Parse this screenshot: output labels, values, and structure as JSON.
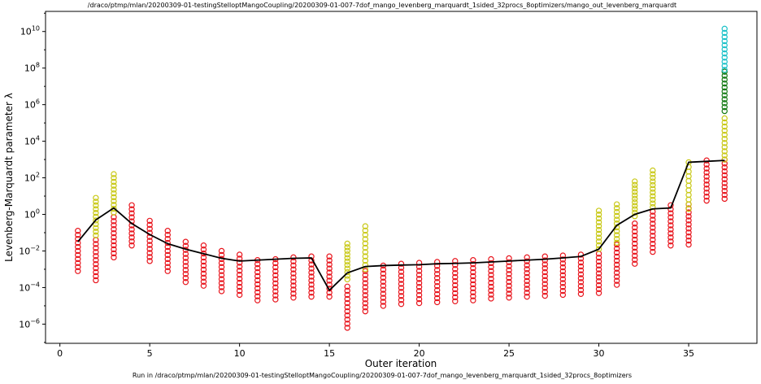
{
  "chart_data": {
    "type": "scatter",
    "title": "/draco/ptmp/mlan/20200309-01-testingStelloptMangoCoupling/20200309-01-007-7dof_mango_levenberg_marquardt_1sided_32procs_8optimizers/mango_out_levenberg_marquardt",
    "footer": "Run in /draco/ptmp/mlan/20200309-01-testingStelloptMangoCoupling/20200309-01-007-7dof_mango_levenberg_marquardt_1sided_32procs_8optimizers",
    "xlabel": "Outer iteration",
    "ylabel": "Levenberg-Marquardt parameter λ",
    "xlim": [
      -0.8,
      38.8
    ],
    "ylim_log10": [
      -7.05,
      11.1
    ],
    "y_scale": "log",
    "x_ticks": [
      0,
      5,
      10,
      15,
      20,
      25,
      30,
      35
    ],
    "x_tick_labels": [
      "0",
      "5",
      "10",
      "15",
      "20",
      "25",
      "30",
      "35"
    ],
    "y_ticks_log10": [
      -6,
      -4,
      -2,
      0,
      2,
      4,
      6,
      8,
      10
    ],
    "y_tick_labels": [
      {
        "base": "10",
        "exp": "−6"
      },
      {
        "base": "10",
        "exp": "−4"
      },
      {
        "base": "10",
        "exp": "−2"
      },
      {
        "base": "10",
        "exp": "0"
      },
      {
        "base": "10",
        "exp": "2"
      },
      {
        "base": "10",
        "exp": "4"
      },
      {
        "base": "10",
        "exp": "6"
      },
      {
        "base": "10",
        "exp": "8"
      },
      {
        "base": "10",
        "exp": "10"
      }
    ],
    "grid": false,
    "colors": {
      "red": "#e8141c",
      "yellow": "#c8c814",
      "cyan": "#1ac1c8",
      "green": "#137a13",
      "line": "#000000"
    },
    "series": [
      {
        "type": "line",
        "x": [
          1,
          2,
          3,
          4,
          5,
          6,
          7,
          8,
          9,
          10,
          11,
          12,
          13,
          14,
          15,
          16,
          17,
          18,
          19,
          20,
          21,
          22,
          23,
          24,
          25,
          26,
          27,
          28,
          29,
          30,
          31,
          32,
          33,
          34,
          35,
          36,
          37
        ],
        "log10_y": [
          -1.5,
          -0.3,
          0.35,
          -0.5,
          -1.1,
          -1.6,
          -1.9,
          -2.15,
          -2.4,
          -2.55,
          -2.5,
          -2.45,
          -2.4,
          -2.38,
          -4.15,
          -3.2,
          -2.85,
          -2.8,
          -2.77,
          -2.75,
          -2.7,
          -2.68,
          -2.65,
          -2.6,
          -2.55,
          -2.5,
          -2.45,
          -2.38,
          -2.3,
          -1.9,
          -0.6,
          0.0,
          0.3,
          0.35,
          2.85,
          2.9,
          2.95
        ]
      },
      {
        "type": "markers",
        "color": "red",
        "columns": [
          {
            "x": 1,
            "log10_range": [
              -3.1,
              -0.9
            ]
          },
          {
            "x": 2,
            "log10_range": [
              -3.6,
              -1.4
            ]
          },
          {
            "x": 3,
            "log10_range": [
              -2.35,
              -0.15
            ]
          },
          {
            "x": 4,
            "log10_range": [
              -1.7,
              0.5
            ]
          },
          {
            "x": 5,
            "log10_range": [
              -2.55,
              -0.35
            ]
          },
          {
            "x": 6,
            "log10_range": [
              -3.1,
              -0.9
            ]
          },
          {
            "x": 7,
            "log10_range": [
              -3.7,
              -1.5
            ]
          },
          {
            "x": 8,
            "log10_range": [
              -3.9,
              -1.7
            ]
          },
          {
            "x": 9,
            "log10_range": [
              -4.2,
              -2.0
            ]
          },
          {
            "x": 10,
            "log10_range": [
              -4.4,
              -2.2
            ]
          },
          {
            "x": 11,
            "log10_range": [
              -4.7,
              -2.5
            ]
          },
          {
            "x": 12,
            "log10_range": [
              -4.65,
              -2.45
            ]
          },
          {
            "x": 13,
            "log10_range": [
              -4.55,
              -2.35
            ]
          },
          {
            "x": 14,
            "log10_range": [
              -4.5,
              -2.3
            ]
          },
          {
            "x": 15,
            "log10_range": [
              -4.5,
              -2.3
            ]
          },
          {
            "x": 16,
            "log10_range": [
              -6.2,
              -3.95
            ]
          },
          {
            "x": 17,
            "log10_range": [
              -5.3,
              -3.1
            ]
          },
          {
            "x": 18,
            "log10_range": [
              -5.0,
              -2.8
            ]
          },
          {
            "x": 19,
            "log10_range": [
              -4.9,
              -2.7
            ]
          },
          {
            "x": 20,
            "log10_range": [
              -4.85,
              -2.65
            ]
          },
          {
            "x": 21,
            "log10_range": [
              -4.8,
              -2.6
            ]
          },
          {
            "x": 22,
            "log10_range": [
              -4.75,
              -2.55
            ]
          },
          {
            "x": 23,
            "log10_range": [
              -4.7,
              -2.5
            ]
          },
          {
            "x": 24,
            "log10_range": [
              -4.6,
              -2.45
            ]
          },
          {
            "x": 25,
            "log10_range": [
              -4.55,
              -2.4
            ]
          },
          {
            "x": 26,
            "log10_range": [
              -4.5,
              -2.35
            ]
          },
          {
            "x": 27,
            "log10_range": [
              -4.45,
              -2.3
            ]
          },
          {
            "x": 28,
            "log10_range": [
              -4.4,
              -2.25
            ]
          },
          {
            "x": 29,
            "log10_range": [
              -4.35,
              -2.2
            ]
          },
          {
            "x": 30,
            "log10_range": [
              -4.3,
              -2.15
            ]
          },
          {
            "x": 31,
            "log10_range": [
              -3.85,
              -1.65
            ]
          },
          {
            "x": 32,
            "log10_range": [
              -2.7,
              -0.5
            ]
          },
          {
            "x": 33,
            "log10_range": [
              -2.05,
              0.15
            ]
          },
          {
            "x": 34,
            "log10_range": [
              -1.7,
              0.5
            ]
          },
          {
            "x": 35,
            "log10_range": [
              -1.65,
              0.55
            ]
          },
          {
            "x": 36,
            "log10_range": [
              0.75,
              2.95
            ]
          },
          {
            "x": 37,
            "log10_range": [
              0.85,
              3.0
            ]
          }
        ]
      },
      {
        "type": "markers",
        "color": "yellow",
        "columns": [
          {
            "x": 2,
            "log10_range": [
              -1.15,
              0.9
            ]
          },
          {
            "x": 3,
            "log10_range": [
              0.1,
              2.2
            ]
          },
          {
            "x": 16,
            "log10_range": [
              -3.55,
              -1.6
            ]
          },
          {
            "x": 17,
            "log10_range": [
              -3.0,
              -0.65
            ]
          },
          {
            "x": 30,
            "log10_range": [
              -1.9,
              0.2
            ]
          },
          {
            "x": 31,
            "log10_range": [
              -1.55,
              0.55
            ]
          },
          {
            "x": 32,
            "log10_range": [
              -0.1,
              1.8
            ]
          },
          {
            "x": 33,
            "log10_range": [
              0.4,
              2.4
            ]
          },
          {
            "x": 35,
            "log10_range": [
              0.3,
              2.85
            ]
          },
          {
            "x": 37,
            "log10_range": [
              3.0,
              5.25
            ]
          }
        ]
      },
      {
        "type": "markers",
        "color": "green",
        "columns": [
          {
            "x": 37,
            "log10_range": [
              5.65,
              7.8
            ]
          }
        ]
      },
      {
        "type": "markers",
        "color": "cyan",
        "columns": [
          {
            "x": 37,
            "log10_range": [
              7.9,
              10.15
            ]
          }
        ]
      }
    ]
  }
}
